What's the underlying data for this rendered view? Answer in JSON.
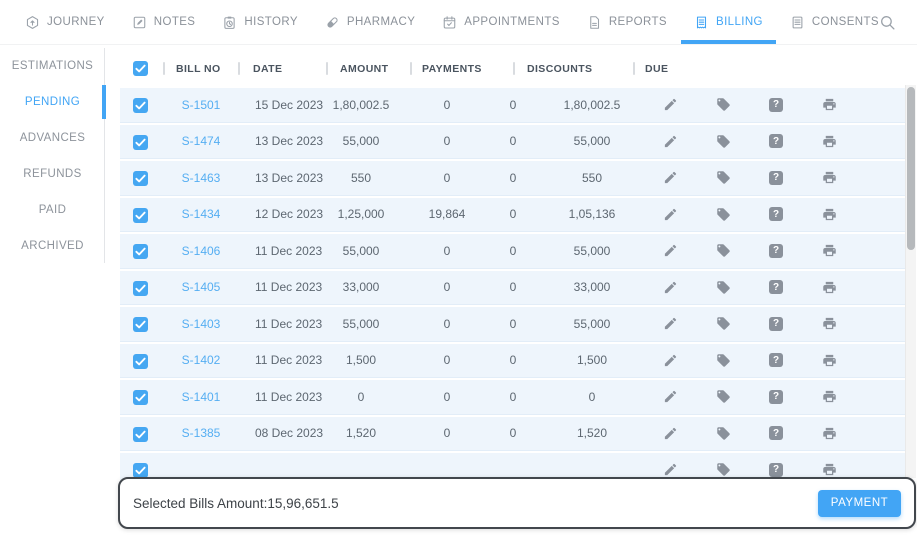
{
  "nav": {
    "items": [
      {
        "label": "JOURNEY",
        "icon": "journey-icon",
        "active": false
      },
      {
        "label": "NOTES",
        "icon": "notes-icon",
        "active": false
      },
      {
        "label": "HISTORY",
        "icon": "history-icon",
        "active": false
      },
      {
        "label": "PHARMACY",
        "icon": "pharmacy-icon",
        "active": false
      },
      {
        "label": "APPOINTMENTS",
        "icon": "appointments-icon",
        "active": false
      },
      {
        "label": "REPORTS",
        "icon": "reports-icon",
        "active": false
      },
      {
        "label": "BILLING",
        "icon": "billing-icon",
        "active": true
      },
      {
        "label": "CONSENTS",
        "icon": "consents-icon",
        "active": false
      }
    ],
    "search_icon": "search-icon"
  },
  "sidebar": {
    "items": [
      {
        "label": "ESTIMATIONS",
        "active": false
      },
      {
        "label": "PENDING",
        "active": true
      },
      {
        "label": "ADVANCES",
        "active": false
      },
      {
        "label": "REFUNDS",
        "active": false
      },
      {
        "label": "PAID",
        "active": false
      },
      {
        "label": "ARCHIVED",
        "active": false
      }
    ]
  },
  "billing_table": {
    "columns": [
      "BILL NO",
      "DATE",
      "AMOUNT",
      "PAYMENTS",
      "DISCOUNTS",
      "DUE"
    ],
    "select_all_checked": true,
    "row_actions": [
      "edit-icon",
      "tag-icon",
      "help-icon",
      "print-icon"
    ],
    "rows": [
      {
        "selected": true,
        "bill_no": "S-1501",
        "date": "15 Dec 2023",
        "amount": "1,80,002.5",
        "payments": "0",
        "discounts": "0",
        "due": "1,80,002.5"
      },
      {
        "selected": true,
        "bill_no": "S-1474",
        "date": "13 Dec 2023",
        "amount": "55,000",
        "payments": "0",
        "discounts": "0",
        "due": "55,000"
      },
      {
        "selected": true,
        "bill_no": "S-1463",
        "date": "13 Dec 2023",
        "amount": "550",
        "payments": "0",
        "discounts": "0",
        "due": "550"
      },
      {
        "selected": true,
        "bill_no": "S-1434",
        "date": "12 Dec 2023",
        "amount": "1,25,000",
        "payments": "19,864",
        "discounts": "0",
        "due": "1,05,136"
      },
      {
        "selected": true,
        "bill_no": "S-1406",
        "date": "11 Dec 2023",
        "amount": "55,000",
        "payments": "0",
        "discounts": "0",
        "due": "55,000"
      },
      {
        "selected": true,
        "bill_no": "S-1405",
        "date": "11 Dec 2023",
        "amount": "33,000",
        "payments": "0",
        "discounts": "0",
        "due": "33,000"
      },
      {
        "selected": true,
        "bill_no": "S-1403",
        "date": "11 Dec 2023",
        "amount": "55,000",
        "payments": "0",
        "discounts": "0",
        "due": "55,000"
      },
      {
        "selected": true,
        "bill_no": "S-1402",
        "date": "11 Dec 2023",
        "amount": "1,500",
        "payments": "0",
        "discounts": "0",
        "due": "1,500"
      },
      {
        "selected": true,
        "bill_no": "S-1401",
        "date": "11 Dec 2023",
        "amount": "0",
        "payments": "0",
        "discounts": "0",
        "due": "0"
      },
      {
        "selected": true,
        "bill_no": "S-1385",
        "date": "08 Dec 2023",
        "amount": "1,520",
        "payments": "0",
        "discounts": "0",
        "due": "1,520"
      },
      {
        "selected": true,
        "bill_no": "",
        "date": "",
        "amount": "",
        "payments": "",
        "discounts": "",
        "due": "",
        "partial": true
      }
    ]
  },
  "footer": {
    "selected_amount_label": "Selected Bills Amount:15,96,651.5",
    "payment_button": "PAYMENT"
  },
  "icons": {
    "help_glyph": "?"
  },
  "colors": {
    "accent": "#42a5f5",
    "row_background": "#eef5fc",
    "icon_gray": "#8a919b",
    "footer_border": "#42474d"
  }
}
